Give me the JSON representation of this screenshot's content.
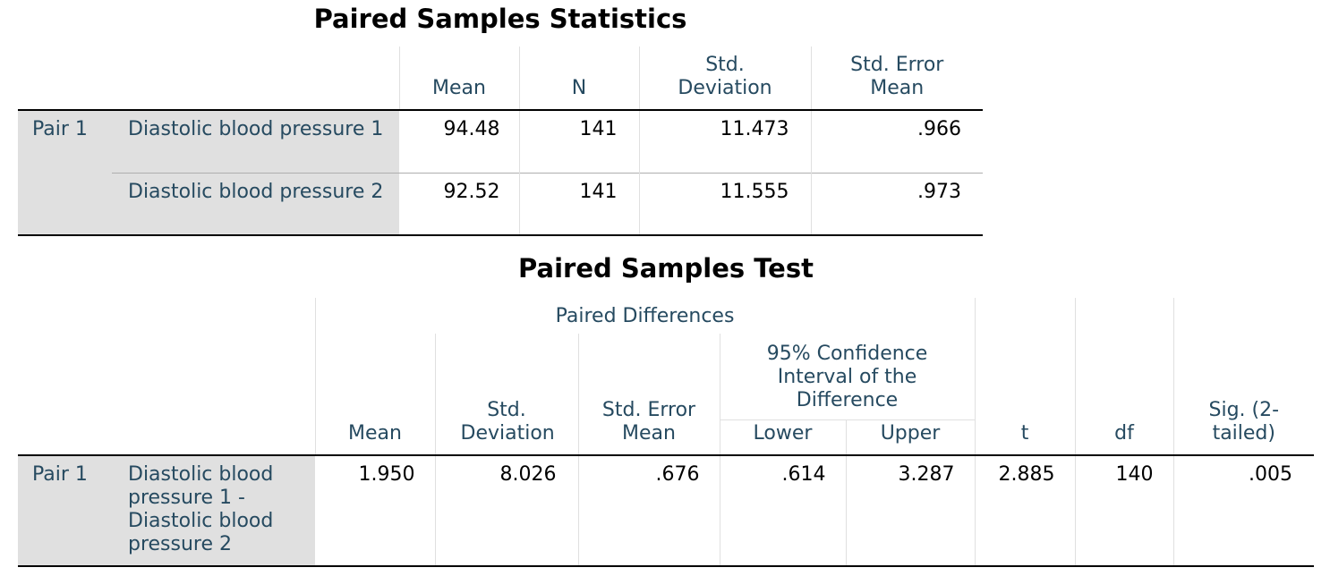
{
  "stats": {
    "title": "Paired Samples Statistics",
    "headers": {
      "mean": "Mean",
      "n": "N",
      "std_dev": "Std. Deviation",
      "std_err": "Std. Error Mean"
    },
    "pair_label": "Pair 1",
    "rows": [
      {
        "label": "Diastolic blood pressure 1",
        "mean": "94.48",
        "n": "141",
        "std_dev": "11.473",
        "std_err": ".966"
      },
      {
        "label": "Diastolic blood pressure 2",
        "mean": "92.52",
        "n": "141",
        "std_dev": "11.555",
        "std_err": ".973"
      }
    ]
  },
  "test": {
    "title": "Paired Samples Test",
    "group_header": "Paired Differences",
    "ci_header": "95% Confidence Interval of the Difference",
    "headers": {
      "mean": "Mean",
      "std_dev": "Std. Deviation",
      "std_err": "Std. Error Mean",
      "lower": "Lower",
      "upper": "Upper",
      "t": "t",
      "df": "df",
      "sig": "Sig. (2-tailed)"
    },
    "pair_label": "Pair 1",
    "row": {
      "label": "Diastolic blood pressure 1 - Diastolic blood pressure 2",
      "mean": "1.950",
      "std_dev": "8.026",
      "std_err": ".676",
      "lower": ".614",
      "upper": "3.287",
      "t": "2.885",
      "df": "140",
      "sig": ".005"
    }
  }
}
